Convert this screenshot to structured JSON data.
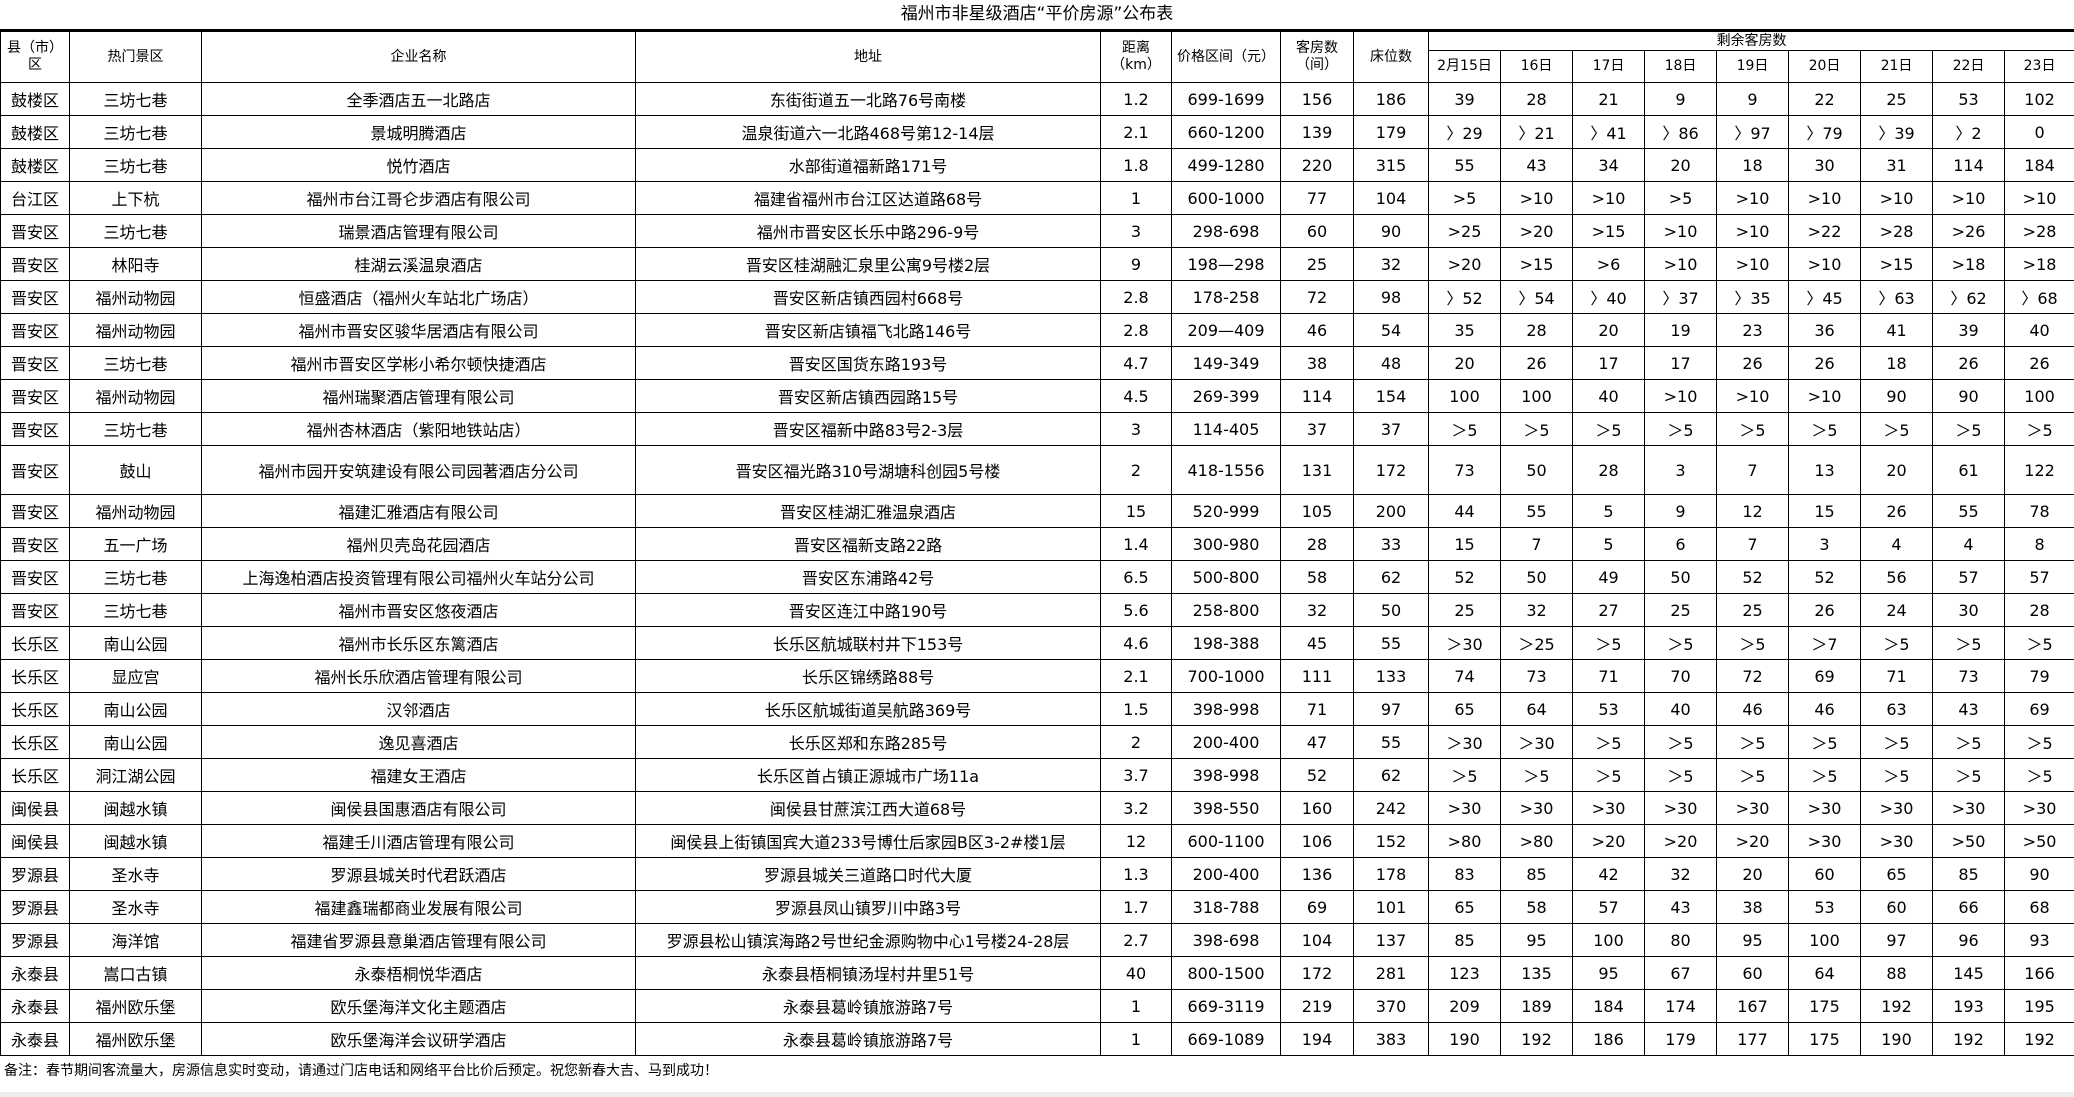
{
  "title": "福州市非星级酒店“平价房源”公布表",
  "headers": {
    "county": "县（市）区",
    "area": "热门景区",
    "name": "企业名称",
    "address": "地址",
    "distance": "距离（km）",
    "price": "价格区间（元）",
    "rooms": "客房数（间）",
    "beds": "床位数",
    "remaining": "剩余客房数",
    "dates": [
      "2月15日",
      "16日",
      "17日",
      "18日",
      "19日",
      "20日",
      "21日",
      "22日",
      "23日"
    ]
  },
  "rows": [
    [
      "鼓楼区",
      "三坊七巷",
      "全季酒店五一北路店",
      "东街街道五一北路76号南楼",
      "1.2",
      "699-1699",
      "156",
      "186",
      "39",
      "28",
      "21",
      "9",
      "9",
      "22",
      "25",
      "53",
      "102"
    ],
    [
      "鼓楼区",
      "三坊七巷",
      "景城明腾酒店",
      "温泉街道六一北路468号第12-14层",
      "2.1",
      "660-1200",
      "139",
      "179",
      "〉29",
      "〉21",
      "〉41",
      "〉86",
      "〉97",
      "〉79",
      "〉39",
      "〉2",
      "0"
    ],
    [
      "鼓楼区",
      "三坊七巷",
      "悦竹酒店",
      "水部街道福新路171号",
      "1.8",
      "499-1280",
      "220",
      "315",
      "55",
      "43",
      "34",
      "20",
      "18",
      "30",
      "31",
      "114",
      "184"
    ],
    [
      "台江区",
      "上下杭",
      "福州市台江哥仑步酒店有限公司",
      "福建省福州市台江区达道路68号",
      "1",
      "600-1000",
      "77",
      "104",
      ">5",
      ">10",
      ">10",
      ">5",
      ">10",
      ">10",
      ">10",
      ">10",
      ">10"
    ],
    [
      "晋安区",
      "三坊七巷",
      "瑞景酒店管理有限公司",
      "福州市晋安区长乐中路296-9号",
      "3",
      "298-698",
      "60",
      "90",
      ">25",
      ">20",
      ">15",
      ">10",
      ">10",
      ">22",
      ">28",
      ">26",
      ">28"
    ],
    [
      "晋安区",
      "林阳寺",
      "桂湖云溪温泉酒店",
      "晋安区桂湖融汇泉里公寓9号楼2层",
      "9",
      "198—298",
      "25",
      "32",
      ">20",
      ">15",
      ">6",
      ">10",
      ">10",
      ">10",
      ">15",
      ">18",
      ">18"
    ],
    [
      "晋安区",
      "福州动物园",
      "恒盛酒店（福州火车站北广场店）",
      "晋安区新店镇西园村668号",
      "2.8",
      "178-258",
      "72",
      "98",
      "〉52",
      "〉54",
      "〉40",
      "〉37",
      "〉35",
      "〉45",
      "〉63",
      "〉62",
      "〉68"
    ],
    [
      "晋安区",
      "福州动物园",
      "福州市晋安区骏华居酒店有限公司",
      "晋安区新店镇福飞北路146号",
      "2.8",
      "209—409",
      "46",
      "54",
      "35",
      "28",
      "20",
      "19",
      "23",
      "36",
      "41",
      "39",
      "40"
    ],
    [
      "晋安区",
      "三坊七巷",
      "福州市晋安区学彬小希尔顿快捷酒店",
      "晋安区国货东路193号",
      "4.7",
      "149-349",
      "38",
      "48",
      "20",
      "26",
      "17",
      "17",
      "26",
      "26",
      "18",
      "26",
      "26"
    ],
    [
      "晋安区",
      "福州动物园",
      "福州瑞聚酒店管理有限公司",
      "晋安区新店镇西园路15号",
      "4.5",
      "269-399",
      "114",
      "154",
      "100",
      "100",
      "40",
      ">10",
      ">10",
      ">10",
      "90",
      "90",
      "100"
    ],
    [
      "晋安区",
      "三坊七巷",
      "福州杏林酒店（紫阳地铁站店）",
      "晋安区福新中路83号2-3层",
      "3",
      "114-405",
      "37",
      "37",
      "＞5",
      "＞5",
      "＞5",
      "＞5",
      "＞5",
      "＞5",
      "＞5",
      "＞5",
      "＞5"
    ],
    [
      "晋安区",
      "鼓山",
      "福州市园开安筑建设有限公司园著酒店分公司",
      "晋安区福光路310号湖塘科创园5号楼",
      "2",
      "418-1556",
      "131",
      "172",
      "73",
      "50",
      "28",
      "3",
      "7",
      "13",
      "20",
      "61",
      "122"
    ],
    [
      "晋安区",
      "福州动物园",
      "福建汇雅酒店有限公司",
      "晋安区桂湖汇雅温泉酒店",
      "15",
      "520-999",
      "105",
      "200",
      "44",
      "55",
      "5",
      "9",
      "12",
      "15",
      "26",
      "55",
      "78"
    ],
    [
      "晋安区",
      "五一广场",
      "福州贝壳岛花园酒店",
      "晋安区福新支路22路",
      "1.4",
      "300-980",
      "28",
      "33",
      "15",
      "7",
      "5",
      "6",
      "7",
      "3",
      "4",
      "4",
      "8"
    ],
    [
      "晋安区",
      "三坊七巷",
      "上海逸柏酒店投资管理有限公司福州火车站分公司",
      "晋安区东浦路42号",
      "6.5",
      "500-800",
      "58",
      "62",
      "52",
      "50",
      "49",
      "50",
      "52",
      "52",
      "56",
      "57",
      "57"
    ],
    [
      "晋安区",
      "三坊七巷",
      "福州市晋安区悠夜酒店",
      "晋安区连江中路190号",
      "5.6",
      "258-800",
      "32",
      "50",
      "25",
      "32",
      "27",
      "25",
      "25",
      "26",
      "24",
      "30",
      "28"
    ],
    [
      "长乐区",
      "南山公园",
      "福州市长乐区东篱酒店",
      "长乐区航城联村井下153号",
      "4.6",
      "198-388",
      "45",
      "55",
      "＞30",
      "＞25",
      "＞5",
      "＞5",
      "＞5",
      "＞7",
      "＞5",
      "＞5",
      "＞5"
    ],
    [
      "长乐区",
      "显应宫",
      "福州长乐欣酒店管理有限公司",
      "长乐区锦绣路88号",
      "2.1",
      "700-1000",
      "111",
      "133",
      "74",
      "73",
      "71",
      "70",
      "72",
      "69",
      "71",
      "73",
      "79"
    ],
    [
      "长乐区",
      "南山公园",
      "汉邻酒店",
      "长乐区航城街道吴航路369号",
      "1.5",
      "398-998",
      "71",
      "97",
      "65",
      "64",
      "53",
      "40",
      "46",
      "46",
      "63",
      "43",
      "69"
    ],
    [
      "长乐区",
      "南山公园",
      "逸见喜酒店",
      "长乐区郑和东路285号",
      "2",
      "200-400",
      "47",
      "55",
      "＞30",
      "＞30",
      "＞5",
      "＞5",
      "＞5",
      "＞5",
      "＞5",
      "＞5",
      "＞5"
    ],
    [
      "长乐区",
      "洞江湖公园",
      "福建女王酒店",
      "长乐区首占镇正源城市广场11a",
      "3.7",
      "398-998",
      "52",
      "62",
      "＞5",
      "＞5",
      "＞5",
      "＞5",
      "＞5",
      "＞5",
      "＞5",
      "＞5",
      "＞5"
    ],
    [
      "闽侯县",
      "闽越水镇",
      "闽侯县国惠酒店有限公司",
      "闽侯县甘蔗滨江西大道68号",
      "3.2",
      "398-550",
      "160",
      "242",
      ">30",
      ">30",
      ">30",
      ">30",
      ">30",
      ">30",
      ">30",
      ">30",
      ">30"
    ],
    [
      "闽侯县",
      "闽越水镇",
      "福建壬川酒店管理有限公司",
      "闽侯县上街镇国宾大道233号博仕后家园B区3-2#楼1层",
      "12",
      "600-1100",
      "106",
      "152",
      ">80",
      ">80",
      ">20",
      ">20",
      ">20",
      ">30",
      ">30",
      ">50",
      ">50"
    ],
    [
      "罗源县",
      "圣水寺",
      "罗源县城关时代君跃酒店",
      "罗源县城关三道路口时代大厦",
      "1.3",
      "200-400",
      "136",
      "178",
      "83",
      "85",
      "42",
      "32",
      "20",
      "60",
      "65",
      "85",
      "90"
    ],
    [
      "罗源县",
      "圣水寺",
      "福建鑫瑞都商业发展有限公司",
      "罗源县凤山镇罗川中路3号",
      "1.7",
      "318-788",
      "69",
      "101",
      "65",
      "58",
      "57",
      "43",
      "38",
      "53",
      "60",
      "66",
      "68"
    ],
    [
      "罗源县",
      "海洋馆",
      "福建省罗源县意巢酒店管理有限公司",
      "罗源县松山镇滨海路2号世纪金源购物中心1号楼24-28层",
      "2.7",
      "398-698",
      "104",
      "137",
      "85",
      "95",
      "100",
      "80",
      "95",
      "100",
      "97",
      "96",
      "93"
    ],
    [
      "永泰县",
      "嵩口古镇",
      "永泰梧桐悦华酒店",
      "永泰县梧桐镇汤埕村井里51号",
      "40",
      "800-1500",
      "172",
      "281",
      "123",
      "135",
      "95",
      "67",
      "60",
      "64",
      "88",
      "145",
      "166"
    ],
    [
      "永泰县",
      "福州欧乐堡",
      "欧乐堡海洋文化主题酒店",
      "永泰县葛岭镇旅游路7号",
      "1",
      "669-3119",
      "219",
      "370",
      "209",
      "189",
      "184",
      "174",
      "167",
      "175",
      "192",
      "193",
      "195"
    ],
    [
      "永泰县",
      "福州欧乐堡",
      "欧乐堡海洋会议研学酒店",
      "永泰县葛岭镇旅游路7号",
      "1",
      "669-1089",
      "194",
      "383",
      "190",
      "192",
      "186",
      "179",
      "177",
      "175",
      "190",
      "192",
      "192"
    ]
  ],
  "note": "备注：春节期间客流量大，房源信息实时变动，请通过门店电话和网络平台比价后预定。祝您新春大吉、马到成功！"
}
